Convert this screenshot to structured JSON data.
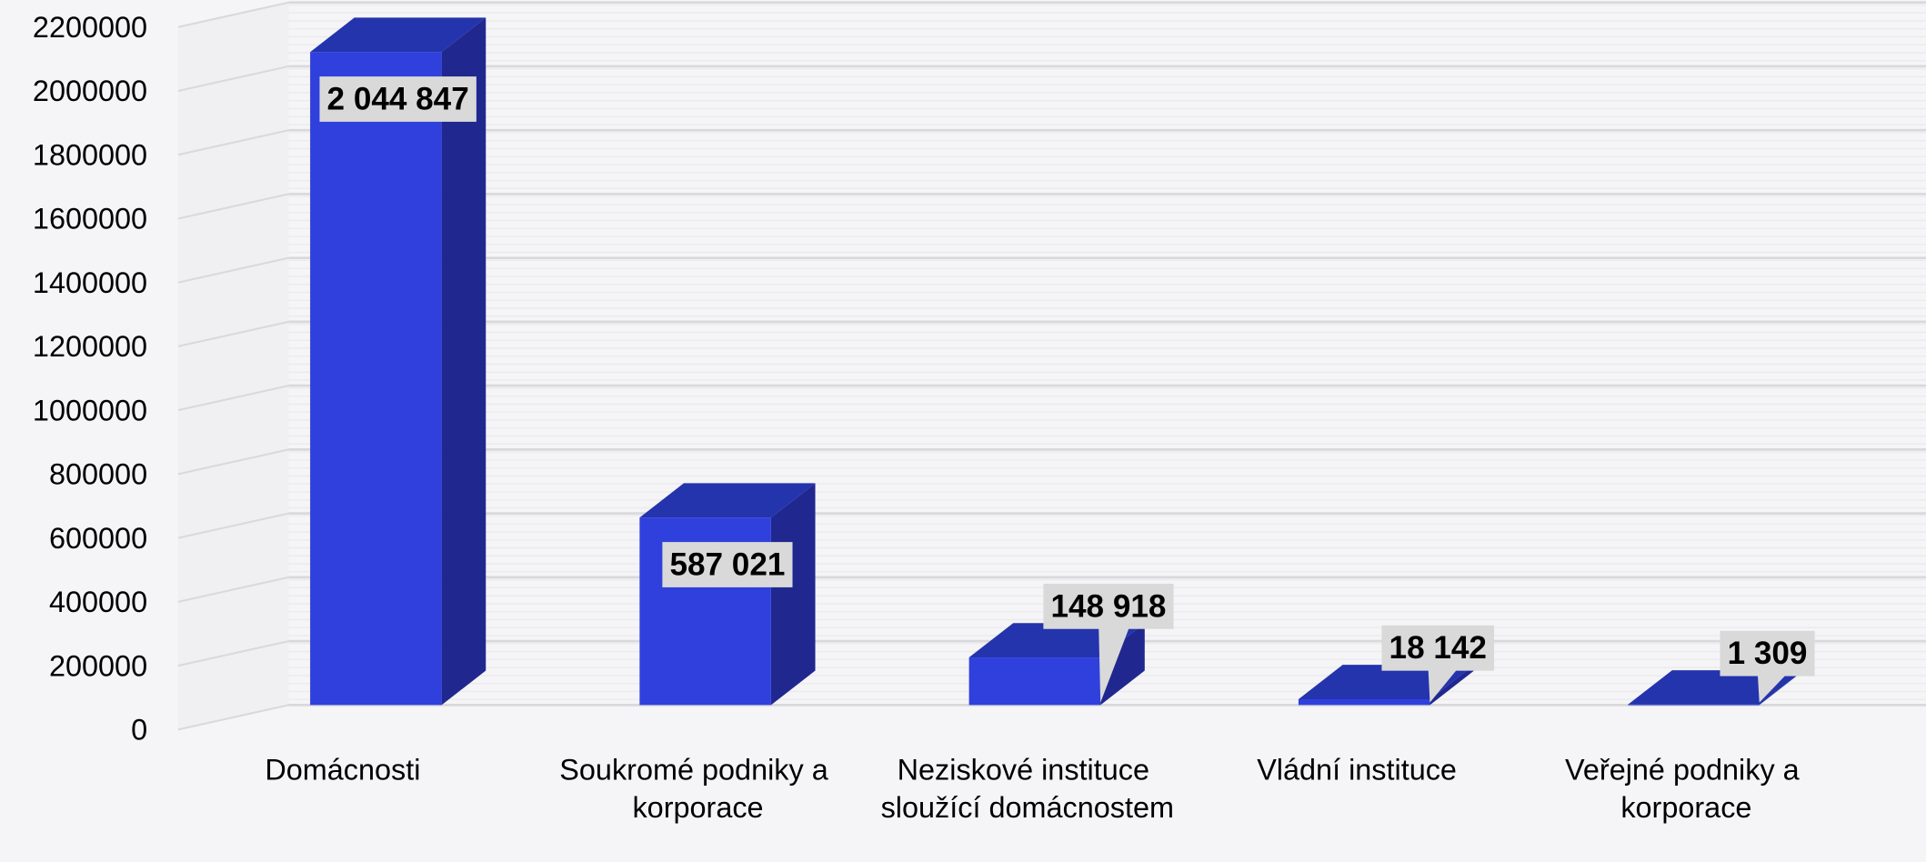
{
  "chart_data": {
    "type": "bar3d",
    "categories": [
      "Domácnosti",
      "Soukromé podniky a korporace",
      "Neziskové instituce sloužící domácnostem",
      "Vládní instituce",
      "Veřejné podniky a korporace"
    ],
    "values": [
      2044847,
      587021,
      148918,
      18142,
      1309
    ],
    "value_labels": [
      "2 044 847",
      "587 021",
      "148 918",
      "18 142",
      "1 309"
    ],
    "color": "#3040dc",
    "ylim": [
      0,
      2200000
    ],
    "yticks": [
      0,
      200000,
      400000,
      600000,
      800000,
      1000000,
      1200000,
      1400000,
      1600000,
      1800000,
      2000000,
      2200000
    ],
    "grid": true
  }
}
